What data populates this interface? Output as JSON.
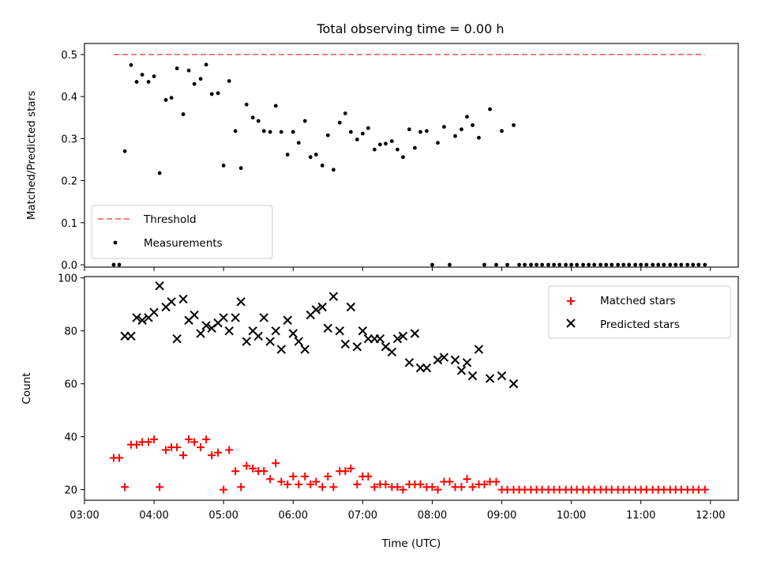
{
  "title": "Total observing time = 0.00 h",
  "chart_data": [
    {
      "type": "scatter",
      "ylabel": "Matched/Predicted stars",
      "xlim": [
        3.0,
        12.4
      ],
      "ylim": [
        0,
        0.5
      ],
      "y_ticks": [
        0.0,
        0.1,
        0.2,
        0.3,
        0.4,
        0.5
      ],
      "y_tick_labels": [
        "0.0",
        "0.1",
        "0.2",
        "0.3",
        "0.4",
        "0.5"
      ],
      "legend_position": "lower-left",
      "threshold": {
        "name": "Threshold",
        "value": 0.5,
        "x": [
          3.42,
          11.92
        ],
        "color": "#f08080"
      },
      "series": [
        {
          "name": "Measurements",
          "color": "#000000",
          "x": [
            3.42,
            3.5,
            3.58,
            3.67,
            3.75,
            3.83,
            3.92,
            4.0,
            4.08,
            4.17,
            4.25,
            4.33,
            4.42,
            4.5,
            4.58,
            4.67,
            4.75,
            4.83,
            4.92,
            5.0,
            5.08,
            5.17,
            5.25,
            5.33,
            5.42,
            5.5,
            5.58,
            5.67,
            5.75,
            5.83,
            5.92,
            6.0,
            6.08,
            6.17,
            6.25,
            6.33,
            6.42,
            6.5,
            6.58,
            6.67,
            6.75,
            6.83,
            6.92,
            7.0,
            7.08,
            7.17,
            7.25,
            7.33,
            7.42,
            7.5,
            7.58,
            7.67,
            7.75,
            7.83,
            7.92,
            8.0,
            8.08,
            8.17,
            8.25,
            8.33,
            8.42,
            8.5,
            8.58,
            8.67,
            8.75,
            8.83,
            8.92,
            9.0,
            9.08,
            9.17,
            9.25,
            9.33,
            9.42,
            9.5,
            9.58,
            9.67,
            9.75,
            9.83,
            9.92,
            10.0,
            10.08,
            10.17,
            10.25,
            10.33,
            10.42,
            10.5,
            10.58,
            10.67,
            10.75,
            10.83,
            10.92,
            11.0,
            11.08,
            11.17,
            11.25,
            11.33,
            11.42,
            11.5,
            11.58,
            11.67,
            11.75,
            11.83,
            11.92
          ],
          "y": [
            0.0,
            0.0,
            0.27,
            0.475,
            0.435,
            0.452,
            0.435,
            0.448,
            0.218,
            0.392,
            0.397,
            0.467,
            0.358,
            0.462,
            0.43,
            0.442,
            0.476,
            0.406,
            0.408,
            0.236,
            0.437,
            0.318,
            0.23,
            0.381,
            0.35,
            0.342,
            0.318,
            0.316,
            0.378,
            0.316,
            0.262,
            0.316,
            0.29,
            0.342,
            0.256,
            0.262,
            0.236,
            0.308,
            0.226,
            0.338,
            0.36,
            0.316,
            0.298,
            0.312,
            0.325,
            0.274,
            0.286,
            0.288,
            0.294,
            0.274,
            0.256,
            0.322,
            0.278,
            0.316,
            0.318,
            0.0,
            0.29,
            0.328,
            0.0,
            0.306,
            0.322,
            0.352,
            0.332,
            0.302,
            0.0,
            0.37,
            0.0,
            0.318,
            0.0,
            0.332,
            0.0,
            0.0,
            0.0,
            0.0,
            0.0,
            0.0,
            0.0,
            0.0,
            0.0,
            0.0,
            0.0,
            0.0,
            0.0,
            0.0,
            0.0,
            0.0,
            0.0,
            0.0,
            0.0,
            0.0,
            0.0,
            0.0,
            0.0,
            0.0,
            0.0,
            0.0,
            0.0,
            0.0,
            0.0,
            0.0,
            0.0,
            0.0,
            0.0
          ]
        }
      ]
    },
    {
      "type": "scatter",
      "xlabel": "Time (UTC)",
      "ylabel": "Count",
      "xlim": [
        3.0,
        12.4
      ],
      "ylim": [
        16,
        100.5
      ],
      "y_ticks": [
        20,
        40,
        60,
        80,
        100
      ],
      "y_tick_labels": [
        "20",
        "40",
        "60",
        "80",
        "100"
      ],
      "x_ticks": [
        3,
        4,
        5,
        6,
        7,
        8,
        9,
        10,
        11,
        12
      ],
      "x_tick_labels": [
        "03:00",
        "04:00",
        "05:00",
        "06:00",
        "07:00",
        "08:00",
        "09:00",
        "10:00",
        "11:00",
        "12:00"
      ],
      "legend_position": "upper-right",
      "series": [
        {
          "name": "Matched stars",
          "marker": "+",
          "color": "#ff0000",
          "x": [
            3.42,
            3.5,
            3.58,
            3.67,
            3.75,
            3.83,
            3.92,
            4.0,
            4.08,
            4.17,
            4.25,
            4.33,
            4.42,
            4.5,
            4.58,
            4.67,
            4.75,
            4.83,
            4.92,
            5.0,
            5.08,
            5.17,
            5.25,
            5.33,
            5.42,
            5.5,
            5.58,
            5.67,
            5.75,
            5.83,
            5.92,
            6.0,
            6.08,
            6.17,
            6.25,
            6.33,
            6.42,
            6.5,
            6.58,
            6.67,
            6.75,
            6.83,
            6.92,
            7.0,
            7.08,
            7.17,
            7.25,
            7.33,
            7.42,
            7.5,
            7.58,
            7.67,
            7.75,
            7.83,
            7.92,
            8.0,
            8.08,
            8.17,
            8.25,
            8.33,
            8.42,
            8.5,
            8.58,
            8.67,
            8.75,
            8.83,
            8.92,
            9.0,
            9.08,
            9.17,
            9.25,
            9.33,
            9.42,
            9.5,
            9.58,
            9.67,
            9.75,
            9.83,
            9.92,
            10.0,
            10.08,
            10.17,
            10.25,
            10.33,
            10.42,
            10.5,
            10.58,
            10.67,
            10.75,
            10.83,
            10.92,
            11.0,
            11.08,
            11.17,
            11.25,
            11.33,
            11.42,
            11.5,
            11.58,
            11.67,
            11.75,
            11.83,
            11.92
          ],
          "y": [
            32,
            32,
            21,
            37,
            37,
            38,
            38,
            39,
            21,
            35,
            36,
            36,
            33,
            39,
            38,
            36,
            39,
            33,
            34,
            20,
            35,
            27,
            21,
            29,
            28,
            27,
            27,
            24,
            30,
            23,
            22,
            25,
            22,
            25,
            22,
            23,
            21,
            25,
            21,
            27,
            27,
            28,
            22,
            25,
            25,
            21,
            22,
            22,
            21,
            21,
            20,
            22,
            22,
            22,
            21,
            21,
            20,
            23,
            23,
            21,
            21,
            24,
            21,
            22,
            22,
            23,
            23,
            20,
            20,
            20,
            20,
            20,
            20,
            20,
            20,
            20,
            20,
            20,
            20,
            20,
            20,
            20,
            20,
            20,
            20,
            20,
            20,
            20,
            20,
            20,
            20,
            20,
            20,
            20,
            20,
            20,
            20,
            20,
            20,
            20,
            20,
            20,
            20
          ]
        },
        {
          "name": "Predicted stars",
          "marker": "x",
          "color": "#000000",
          "x": [
            3.58,
            3.67,
            3.75,
            3.83,
            3.92,
            4.0,
            4.08,
            4.17,
            4.25,
            4.33,
            4.42,
            4.5,
            4.58,
            4.67,
            4.75,
            4.83,
            4.92,
            5.0,
            5.08,
            5.17,
            5.25,
            5.33,
            5.42,
            5.5,
            5.58,
            5.67,
            5.75,
            5.83,
            5.92,
            6.0,
            6.08,
            6.17,
            6.25,
            6.33,
            6.42,
            6.5,
            6.58,
            6.67,
            6.75,
            6.83,
            6.92,
            7.0,
            7.08,
            7.17,
            7.25,
            7.33,
            7.42,
            7.5,
            7.58,
            7.67,
            7.75,
            7.83,
            7.92,
            8.08,
            8.17,
            8.33,
            8.42,
            8.5,
            8.58,
            8.67,
            8.83,
            9.0,
            9.17
          ],
          "y": [
            78,
            78,
            85,
            84,
            85,
            87,
            97,
            89,
            91,
            77,
            92,
            84,
            86,
            79,
            82,
            81,
            83,
            85,
            80,
            85,
            91,
            76,
            80,
            78,
            85,
            76,
            80,
            73,
            84,
            79,
            76,
            73,
            86,
            88,
            89,
            81,
            93,
            80,
            75,
            89,
            74,
            80,
            77,
            77,
            77,
            74,
            72,
            77,
            78,
            68,
            79,
            66,
            66,
            69,
            70,
            69,
            65,
            68,
            63,
            73,
            62,
            63,
            60
          ]
        }
      ]
    }
  ]
}
